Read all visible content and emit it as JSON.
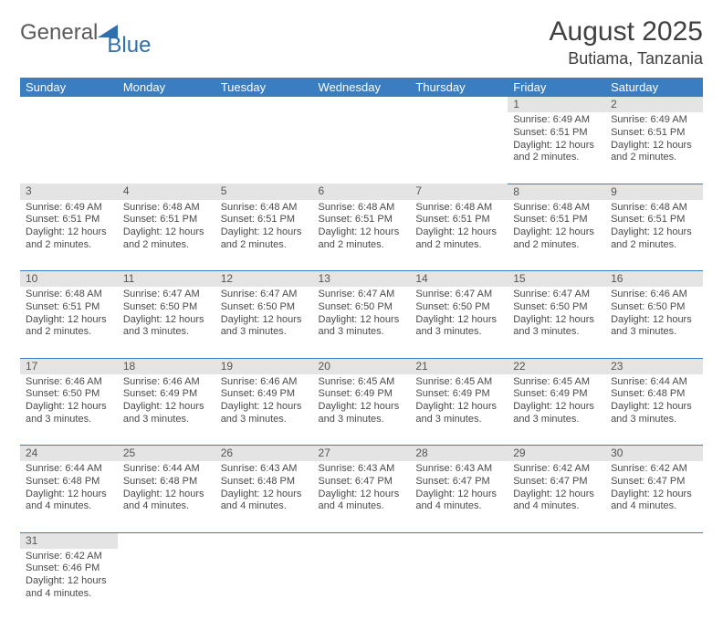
{
  "logo": {
    "text1": "General",
    "text2": "Blue",
    "flag_color": "#2f6fad"
  },
  "title": "August 2025",
  "location": "Butiama, Tanzania",
  "colors": {
    "header_bg": "#3a7ec1",
    "header_fg": "#ffffff",
    "daynum_bg": "#e4e4e4",
    "row_divider": "#3a7ec1",
    "text": "#4a4a4a",
    "title_text": "#404040"
  },
  "days_of_week": [
    "Sunday",
    "Monday",
    "Tuesday",
    "Wednesday",
    "Thursday",
    "Friday",
    "Saturday"
  ],
  "weeks": [
    [
      null,
      null,
      null,
      null,
      null,
      {
        "n": "1",
        "sr": "6:49 AM",
        "ss": "6:51 PM",
        "dl": "12 hours and 2 minutes."
      },
      {
        "n": "2",
        "sr": "6:49 AM",
        "ss": "6:51 PM",
        "dl": "12 hours and 2 minutes."
      }
    ],
    [
      {
        "n": "3",
        "sr": "6:49 AM",
        "ss": "6:51 PM",
        "dl": "12 hours and 2 minutes."
      },
      {
        "n": "4",
        "sr": "6:48 AM",
        "ss": "6:51 PM",
        "dl": "12 hours and 2 minutes."
      },
      {
        "n": "5",
        "sr": "6:48 AM",
        "ss": "6:51 PM",
        "dl": "12 hours and 2 minutes."
      },
      {
        "n": "6",
        "sr": "6:48 AM",
        "ss": "6:51 PM",
        "dl": "12 hours and 2 minutes."
      },
      {
        "n": "7",
        "sr": "6:48 AM",
        "ss": "6:51 PM",
        "dl": "12 hours and 2 minutes."
      },
      {
        "n": "8",
        "sr": "6:48 AM",
        "ss": "6:51 PM",
        "dl": "12 hours and 2 minutes."
      },
      {
        "n": "9",
        "sr": "6:48 AM",
        "ss": "6:51 PM",
        "dl": "12 hours and 2 minutes."
      }
    ],
    [
      {
        "n": "10",
        "sr": "6:48 AM",
        "ss": "6:51 PM",
        "dl": "12 hours and 2 minutes."
      },
      {
        "n": "11",
        "sr": "6:47 AM",
        "ss": "6:50 PM",
        "dl": "12 hours and 3 minutes."
      },
      {
        "n": "12",
        "sr": "6:47 AM",
        "ss": "6:50 PM",
        "dl": "12 hours and 3 minutes."
      },
      {
        "n": "13",
        "sr": "6:47 AM",
        "ss": "6:50 PM",
        "dl": "12 hours and 3 minutes."
      },
      {
        "n": "14",
        "sr": "6:47 AM",
        "ss": "6:50 PM",
        "dl": "12 hours and 3 minutes."
      },
      {
        "n": "15",
        "sr": "6:47 AM",
        "ss": "6:50 PM",
        "dl": "12 hours and 3 minutes."
      },
      {
        "n": "16",
        "sr": "6:46 AM",
        "ss": "6:50 PM",
        "dl": "12 hours and 3 minutes."
      }
    ],
    [
      {
        "n": "17",
        "sr": "6:46 AM",
        "ss": "6:50 PM",
        "dl": "12 hours and 3 minutes."
      },
      {
        "n": "18",
        "sr": "6:46 AM",
        "ss": "6:49 PM",
        "dl": "12 hours and 3 minutes."
      },
      {
        "n": "19",
        "sr": "6:46 AM",
        "ss": "6:49 PM",
        "dl": "12 hours and 3 minutes."
      },
      {
        "n": "20",
        "sr": "6:45 AM",
        "ss": "6:49 PM",
        "dl": "12 hours and 3 minutes."
      },
      {
        "n": "21",
        "sr": "6:45 AM",
        "ss": "6:49 PM",
        "dl": "12 hours and 3 minutes."
      },
      {
        "n": "22",
        "sr": "6:45 AM",
        "ss": "6:49 PM",
        "dl": "12 hours and 3 minutes."
      },
      {
        "n": "23",
        "sr": "6:44 AM",
        "ss": "6:48 PM",
        "dl": "12 hours and 3 minutes."
      }
    ],
    [
      {
        "n": "24",
        "sr": "6:44 AM",
        "ss": "6:48 PM",
        "dl": "12 hours and 4 minutes."
      },
      {
        "n": "25",
        "sr": "6:44 AM",
        "ss": "6:48 PM",
        "dl": "12 hours and 4 minutes."
      },
      {
        "n": "26",
        "sr": "6:43 AM",
        "ss": "6:48 PM",
        "dl": "12 hours and 4 minutes."
      },
      {
        "n": "27",
        "sr": "6:43 AM",
        "ss": "6:47 PM",
        "dl": "12 hours and 4 minutes."
      },
      {
        "n": "28",
        "sr": "6:43 AM",
        "ss": "6:47 PM",
        "dl": "12 hours and 4 minutes."
      },
      {
        "n": "29",
        "sr": "6:42 AM",
        "ss": "6:47 PM",
        "dl": "12 hours and 4 minutes."
      },
      {
        "n": "30",
        "sr": "6:42 AM",
        "ss": "6:47 PM",
        "dl": "12 hours and 4 minutes."
      }
    ],
    [
      {
        "n": "31",
        "sr": "6:42 AM",
        "ss": "6:46 PM",
        "dl": "12 hours and 4 minutes."
      },
      null,
      null,
      null,
      null,
      null,
      null
    ]
  ],
  "labels": {
    "sunrise": "Sunrise:",
    "sunset": "Sunset:",
    "daylight": "Daylight:"
  }
}
